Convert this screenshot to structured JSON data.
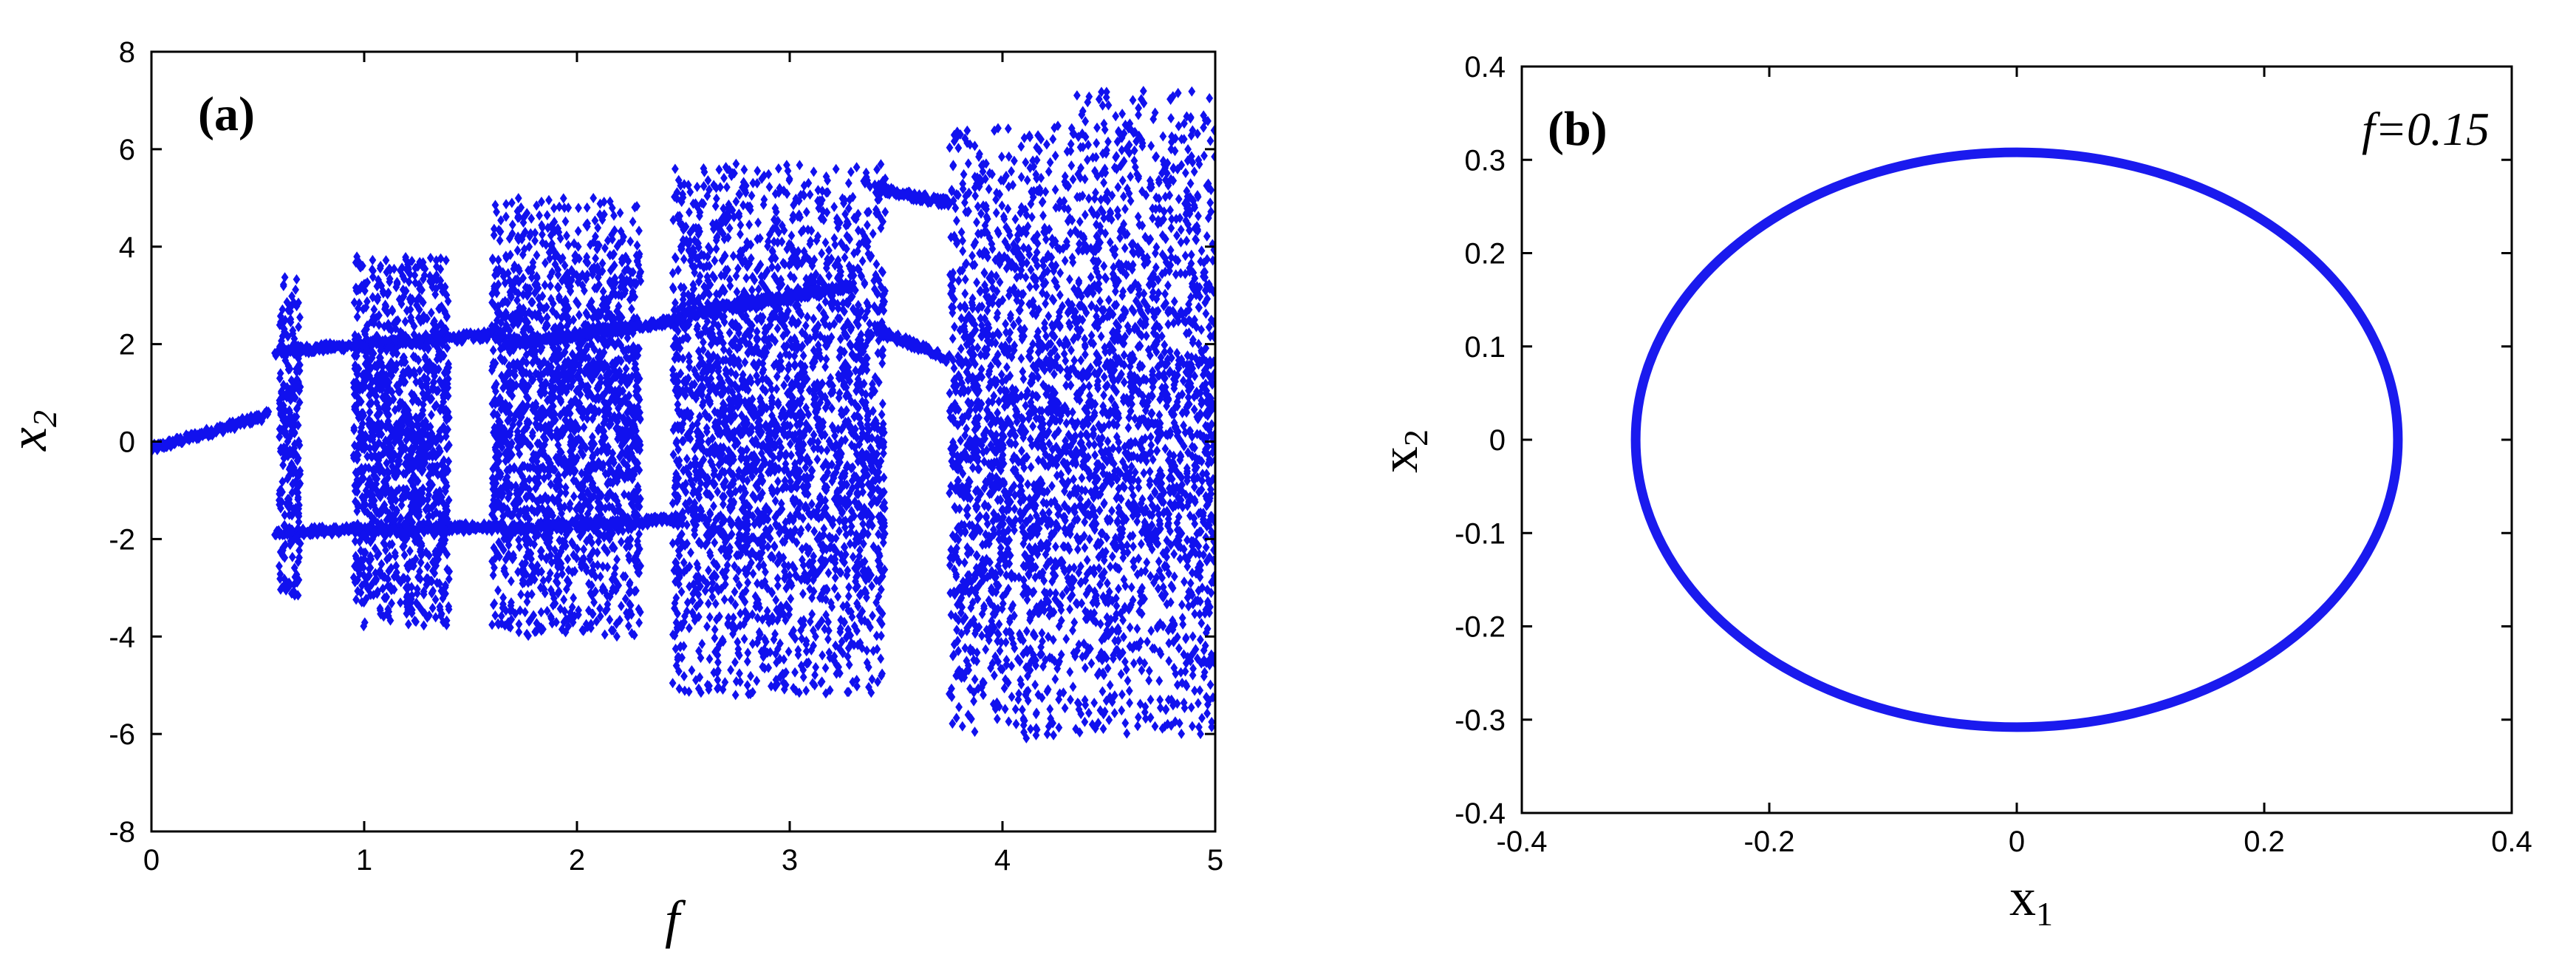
{
  "chart_data": [
    {
      "panel_label": "(a)",
      "type": "scatter",
      "xlabel": "f",
      "ylabel": "x2",
      "xlabel_main": "f",
      "ylabel_main": "x",
      "ylabel_sub": "2",
      "xlim": [
        0,
        5
      ],
      "ylim": [
        -8,
        8
      ],
      "xticks": [
        "0",
        "1",
        "2",
        "3",
        "4",
        "5"
      ],
      "yticks": [
        "8",
        "6",
        "4",
        "2",
        "0",
        "-2",
        "-4",
        "-6",
        "-8"
      ],
      "grid": false,
      "color": "#1111ee",
      "marker": "diamond",
      "description": "bifurcation diagram",
      "segments": [
        {
          "x_range": [
            0,
            0.55
          ],
          "mode": "line",
          "y_start": -0.15,
          "y_end": 0.55
        },
        {
          "x_range": [
            0.58,
            1.65
          ],
          "mode": "line",
          "y_start": 1.85,
          "y_end": 2.2
        },
        {
          "x_range": [
            0.58,
            1.65
          ],
          "mode": "line",
          "y_start": -1.85,
          "y_end": -1.75
        },
        {
          "x_range": [
            0.6,
            0.7
          ],
          "mode": "cloud",
          "y": [
            -3.2,
            3.4
          ]
        },
        {
          "x_range": [
            0.95,
            1.4
          ],
          "mode": "cloud",
          "y": [
            -3.8,
            3.8
          ]
        },
        {
          "x_range": [
            1.6,
            2.3
          ],
          "mode": "cloud",
          "y": [
            -4.0,
            5.0
          ]
        },
        {
          "x_range": [
            1.65,
            2.5
          ],
          "mode": "line",
          "y_start": 2.0,
          "y_end": 2.5
        },
        {
          "x_range": [
            1.65,
            2.5
          ],
          "mode": "line",
          "y_start": -1.8,
          "y_end": -1.6
        },
        {
          "x_range": [
            2.45,
            3.45
          ],
          "mode": "cloud",
          "y": [
            -5.2,
            5.7
          ]
        },
        {
          "x_range": [
            2.5,
            3.3
          ],
          "mode": "line",
          "y_start": 2.6,
          "y_end": 3.2
        },
        {
          "x_range": [
            3.4,
            3.75
          ],
          "mode": "line",
          "y_start": 5.2,
          "y_end": 4.9
        },
        {
          "x_range": [
            3.4,
            3.75
          ],
          "mode": "line",
          "y_start": 2.3,
          "y_end": 1.7
        },
        {
          "x_range": [
            3.75,
            4.35
          ],
          "mode": "cloud",
          "y": [
            -6.1,
            6.5
          ]
        },
        {
          "x_range": [
            4.35,
            5.0
          ],
          "mode": "cloud",
          "y": [
            -6.0,
            7.2
          ]
        }
      ]
    },
    {
      "panel_label": "(b)",
      "annotation": "f=0.15",
      "type": "line",
      "xlabel": "x1",
      "ylabel": "x2",
      "xlabel_main": "x",
      "xlabel_sub": "1",
      "ylabel_main": "x",
      "ylabel_sub": "2",
      "xlim": [
        -0.4,
        0.4
      ],
      "ylim": [
        -0.4,
        0.4
      ],
      "xticks": [
        "-0.4",
        "-0.2",
        "0",
        "0.2",
        "0.4"
      ],
      "yticks": [
        "0.4",
        "0.3",
        "0.2",
        "0.1",
        "0",
        "-0.1",
        "-0.2",
        "-0.3",
        "-0.4"
      ],
      "grid": false,
      "color": "#1a1aee",
      "description": "closed orbit",
      "orbit": {
        "cx": 0.0,
        "cy": 0.0,
        "rx": 0.308,
        "ry": 0.308
      }
    }
  ]
}
